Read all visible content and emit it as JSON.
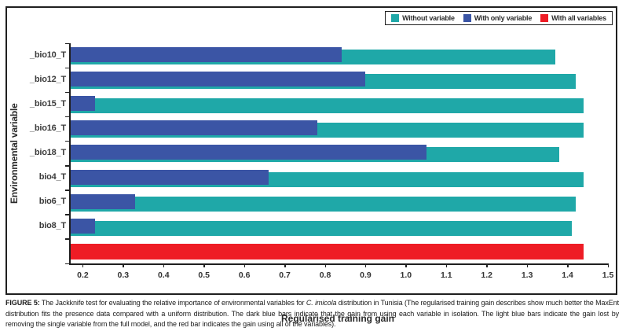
{
  "legend": {
    "items": [
      {
        "label": "Without variable",
        "color": "#1FA8A8"
      },
      {
        "label": "With only variable",
        "color": "#3B55A5"
      },
      {
        "label": "With all variables",
        "color": "#EE1C25"
      }
    ]
  },
  "chart_data": {
    "type": "bar",
    "orientation": "horizontal",
    "title": "",
    "xlabel": "Regularised training gain",
    "ylabel": "Environmental variable",
    "xlim": [
      0.17,
      1.5
    ],
    "xtick_labels": [
      "0.2",
      "0.3",
      "0.4",
      "0.5",
      "0.6",
      "0.7",
      "0.8",
      "0.9",
      "1.0",
      "1.1",
      "1.2",
      "1.3",
      "1.4",
      "1.5"
    ],
    "grid": false,
    "legend_position": "top-right",
    "categories": [
      "_bio10_T",
      "_bio12_T",
      "_bio15_T",
      "_bio16_T",
      "_bio18_T",
      "bio4_T",
      "bio6_T",
      "bio8_T"
    ],
    "series": [
      {
        "name": "Without variable",
        "color": "#1FA8A8",
        "values": [
          1.37,
          1.42,
          1.44,
          1.44,
          1.38,
          1.44,
          1.42,
          1.41
        ]
      },
      {
        "name": "With only variable",
        "color": "#3B55A5",
        "values": [
          0.84,
          0.9,
          0.23,
          0.78,
          1.05,
          0.66,
          0.33,
          0.23
        ]
      }
    ],
    "all_variables_bar": {
      "name": "With all variables",
      "color": "#EE1C25",
      "value": 1.44
    }
  },
  "caption": {
    "label": "FIGURE 5:",
    "before_species": " The Jackknife test for evaluating the relative importance of environmental variables for ",
    "species": "C. imicola",
    "after_species": " distribution in Tunisia (The regularised training gain describes show much better the MaxEnt distribution fits the presence data compared with a uniform distribution. The dark blue bars indicate that the gain from using each variable in isolation. The light blue bars indicate the gain lost by removing the single variable from the full model, and the red bar indicates the gain using all of the variables)."
  }
}
